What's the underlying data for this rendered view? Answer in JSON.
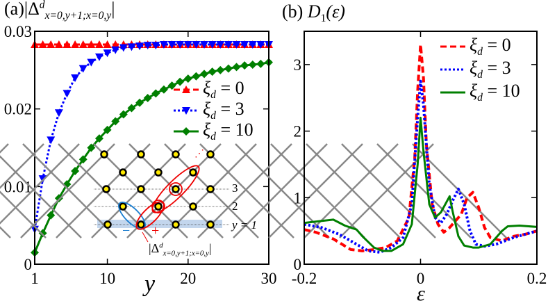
{
  "chart_data": [
    {
      "type": "line",
      "panel_label": "(a)",
      "title": {
        "prefix": "|Δ",
        "sup": "d",
        "sub": "x=0,y+1;x=0,y",
        "suffix": "|"
      },
      "xlabel": "y",
      "xlim": [
        1,
        30
      ],
      "ylim": [
        0,
        0.03
      ],
      "xticks": [
        "1",
        "10",
        "20",
        "30"
      ],
      "xtick_values": [
        1,
        10,
        20,
        30
      ],
      "yticks": [
        "0",
        "0.01",
        "0.02",
        "0.03"
      ],
      "ytick_values": [
        0,
        0.01,
        0.02,
        0.03
      ],
      "legend_placement": "right",
      "x": [
        1,
        2,
        3,
        4,
        5,
        6,
        7,
        8,
        9,
        10,
        11,
        12,
        13,
        14,
        15,
        16,
        17,
        18,
        19,
        20,
        21,
        22,
        23,
        24,
        25,
        26,
        27,
        28,
        29,
        30
      ],
      "series": [
        {
          "name": "ξd = 0",
          "legend": {
            "sym": "ξ",
            "sub": "d",
            "rest": " = 0"
          },
          "color": "#ff0000",
          "marker": "triangle-up",
          "dash": "dashed",
          "values": [
            0.0283,
            0.0283,
            0.0283,
            0.0283,
            0.0283,
            0.0283,
            0.0283,
            0.0283,
            0.0283,
            0.0283,
            0.0283,
            0.0283,
            0.0283,
            0.0283,
            0.0283,
            0.0283,
            0.0283,
            0.0283,
            0.0283,
            0.0283,
            0.0283,
            0.0283,
            0.0283,
            0.0283,
            0.0283,
            0.0283,
            0.0283,
            0.0283,
            0.0283,
            0.0283
          ]
        },
        {
          "name": "ξd = 3",
          "legend": {
            "sym": "ξ",
            "sub": "d",
            "rest": " = 3"
          },
          "color": "#0000ff",
          "marker": "triangle-down",
          "dash": "dotted",
          "values": [
            0.0045,
            0.011,
            0.016,
            0.0195,
            0.022,
            0.024,
            0.0252,
            0.026,
            0.0267,
            0.0272,
            0.0276,
            0.0279,
            0.028,
            0.0281,
            0.0282,
            0.0282,
            0.0283,
            0.0283,
            0.0283,
            0.0283,
            0.0283,
            0.0283,
            0.0283,
            0.0283,
            0.0283,
            0.0283,
            0.0283,
            0.0283,
            0.0283,
            0.0283
          ]
        },
        {
          "name": "ξd = 10",
          "legend": {
            "sym": "ξ",
            "sub": "d",
            "rest": " = 10"
          },
          "color": "#007f00",
          "marker": "diamond",
          "dash": "solid",
          "values": [
            0.0015,
            0.004,
            0.0063,
            0.0085,
            0.0103,
            0.012,
            0.0135,
            0.015,
            0.0162,
            0.0173,
            0.0184,
            0.0193,
            0.0201,
            0.0208,
            0.0214,
            0.022,
            0.0225,
            0.023,
            0.0235,
            0.0239,
            0.0242,
            0.0245,
            0.0248,
            0.025,
            0.0252,
            0.0254,
            0.0256,
            0.0257,
            0.0258,
            0.026
          ]
        }
      ],
      "inset": {
        "row_labels": [
          "3",
          "2",
          "y = 1"
        ],
        "minus": "−",
        "plus": "+",
        "dots": "⋰",
        "annotation": {
          "prefix": "|Δ",
          "sup": "d",
          "sub": "x=0,y+1;x=0,y",
          "suffix": "|"
        }
      }
    },
    {
      "type": "line",
      "panel_label": "(b)",
      "title": {
        "main": "D",
        "sub": "1",
        "rest": "(ε)"
      },
      "xlabel": "ε",
      "xlim": [
        -0.2,
        0.2
      ],
      "ylim": [
        0,
        3.5
      ],
      "xticks": [
        "-0.2",
        "0",
        "0.2"
      ],
      "xtick_values": [
        -0.2,
        0,
        0.2
      ],
      "yticks": [
        "0",
        "1",
        "2",
        "3"
      ],
      "ytick_values": [
        0,
        1,
        2,
        3
      ],
      "legend_placement": "top-right",
      "series": [
        {
          "name": "ξd = 0",
          "legend": {
            "sym": "ξ",
            "sub": "d",
            "rest": " = 0"
          },
          "color": "#ff0000",
          "dash": "dashed",
          "x": [
            -0.2,
            -0.18,
            -0.15,
            -0.12,
            -0.1,
            -0.08,
            -0.06,
            -0.04,
            -0.02,
            -0.01,
            -0.005,
            0,
            0.005,
            0.01,
            0.02,
            0.03,
            0.04,
            0.05,
            0.06,
            0.07,
            0.08,
            0.09,
            0.1,
            0.11,
            0.12,
            0.14,
            0.16,
            0.18,
            0.2
          ],
          "y": [
            0.52,
            0.48,
            0.38,
            0.22,
            0.2,
            0.22,
            0.25,
            0.35,
            0.7,
            1.6,
            2.6,
            3.3,
            2.8,
            1.8,
            0.9,
            0.6,
            0.48,
            0.55,
            0.65,
            0.75,
            1.0,
            1.08,
            0.85,
            0.55,
            0.4,
            0.35,
            0.42,
            0.45,
            0.5
          ]
        },
        {
          "name": "ξd = 3",
          "legend": {
            "sym": "ξ",
            "sub": "d",
            "rest": " = 3"
          },
          "color": "#0000ff",
          "dash": "dotted",
          "x": [
            -0.2,
            -0.17,
            -0.14,
            -0.11,
            -0.09,
            -0.07,
            -0.05,
            -0.03,
            -0.015,
            -0.005,
            0,
            0.005,
            0.015,
            0.025,
            0.035,
            0.045,
            0.055,
            0.065,
            0.075,
            0.085,
            0.095,
            0.11,
            0.13,
            0.16,
            0.18,
            0.2
          ],
          "y": [
            0.6,
            0.55,
            0.45,
            0.3,
            0.2,
            0.18,
            0.25,
            0.4,
            0.9,
            2.2,
            2.75,
            2.4,
            1.2,
            0.7,
            0.62,
            0.75,
            0.95,
            1.13,
            0.9,
            0.5,
            0.3,
            0.27,
            0.3,
            0.4,
            0.45,
            0.5
          ]
        },
        {
          "name": "ξd = 10",
          "legend": {
            "sym": "ξ",
            "sub": "d",
            "rest": " = 10"
          },
          "color": "#007f00",
          "dash": "solid",
          "x": [
            -0.2,
            -0.17,
            -0.15,
            -0.13,
            -0.11,
            -0.1,
            -0.08,
            -0.065,
            -0.05,
            -0.03,
            -0.015,
            -0.005,
            0,
            0.005,
            0.015,
            0.025,
            0.035,
            0.05,
            0.055,
            0.065,
            0.075,
            0.09,
            0.1,
            0.12,
            0.14,
            0.15,
            0.17,
            0.2
          ],
          "y": [
            0.62,
            0.65,
            0.67,
            0.58,
            0.52,
            0.42,
            0.25,
            0.2,
            0.2,
            0.3,
            0.6,
            1.5,
            2.2,
            1.7,
            0.9,
            0.7,
            0.78,
            1.02,
            0.8,
            0.42,
            0.28,
            0.25,
            0.25,
            0.3,
            0.5,
            0.57,
            0.58,
            0.56
          ]
        }
      ]
    }
  ]
}
